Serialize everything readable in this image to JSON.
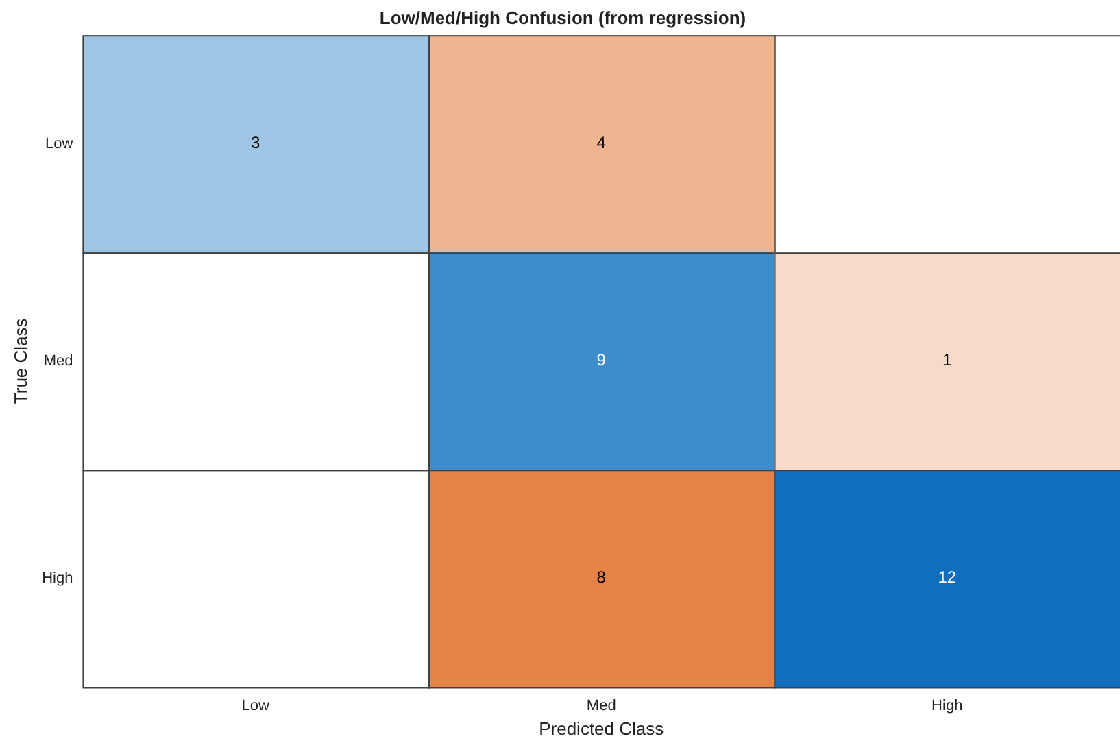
{
  "chart_data": {
    "type": "heatmap",
    "title": "Low/Med/High Confusion (from regression)",
    "xlabel": "Predicted Class",
    "ylabel": "True Class",
    "categories": [
      "Low",
      "Med",
      "High"
    ],
    "y_categories": [
      "Low",
      "Med",
      "High"
    ],
    "cells": [
      [
        3,
        4,
        null
      ],
      [
        null,
        9,
        1
      ],
      [
        null,
        8,
        12
      ]
    ],
    "data_labels": true
  }
}
